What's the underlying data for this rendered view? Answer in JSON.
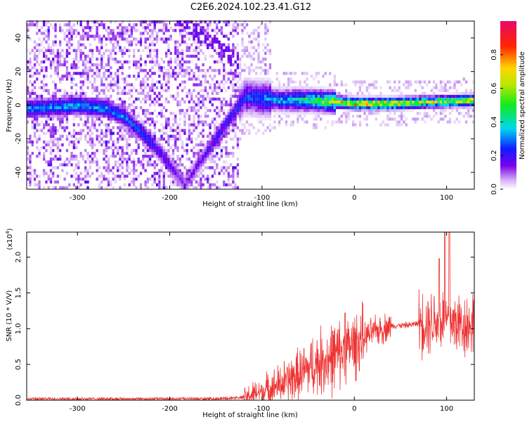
{
  "figure_title": "C2E6.2024.102.23.41.G12",
  "colors": {
    "snr_line": "#ee3333",
    "axis": "#000000"
  },
  "chart_data": [
    {
      "type": "heatmap",
      "xlabel": "Height of straight line (km)",
      "ylabel": "Frequency (Hz)",
      "xlim": [
        -355,
        130
      ],
      "ylim": [
        -50,
        50
      ],
      "x_ticks": [
        -300,
        -200,
        -100,
        0,
        100
      ],
      "x_tick_labels": [
        "-300",
        "-200",
        "-100",
        "0",
        "100"
      ],
      "y_ticks": [
        -40,
        -20,
        0,
        20,
        40
      ],
      "y_tick_labels": [
        "-40",
        "-20",
        "0",
        "20",
        "40"
      ],
      "ridge": [
        {
          "x": -350,
          "f": -3,
          "amp": 0.35
        },
        {
          "x": -300,
          "f": -1,
          "amp": 0.38
        },
        {
          "x": -270,
          "f": -3,
          "amp": 0.36
        },
        {
          "x": -250,
          "f": -8,
          "amp": 0.34
        },
        {
          "x": -230,
          "f": -18,
          "amp": 0.3
        },
        {
          "x": -210,
          "f": -30,
          "amp": 0.22
        },
        {
          "x": -185,
          "f": -48,
          "amp": 0.15
        },
        {
          "x": -120,
          "f": 4,
          "amp": 0.3
        },
        {
          "x": -80,
          "f": 2,
          "amp": 0.42
        },
        {
          "x": -50,
          "f": 2,
          "amp": 0.55
        },
        {
          "x": -20,
          "f": 1,
          "amp": 0.75
        },
        {
          "x": 0,
          "f": 0,
          "amp": 0.95
        },
        {
          "x": 40,
          "f": 0,
          "amp": 0.95
        },
        {
          "x": 80,
          "f": 1,
          "amp": 0.7
        },
        {
          "x": 130,
          "f": 2,
          "amp": 0.85
        }
      ],
      "colorbar": {
        "label": "Normalized spectral amplitude",
        "range": [
          0,
          1
        ],
        "ticks": [
          0.0,
          0.2,
          0.4,
          0.6,
          0.8
        ],
        "tick_labels": [
          "0.0",
          "0.2",
          "0.4",
          "0.6",
          "0.8"
        ]
      }
    },
    {
      "type": "line",
      "xlabel": "Height of straight line (km)",
      "ylabel": "SNR (10 * V/V)",
      "multiplier": "(x10",
      "multiplier_exp": "4",
      "multiplier_close": ")",
      "xlim": [
        -355,
        130
      ],
      "ylim": [
        0,
        2.35
      ],
      "x_ticks": [
        -300,
        -200,
        -100,
        0,
        100
      ],
      "x_tick_labels": [
        "-300",
        "-200",
        "-100",
        "0",
        "100"
      ],
      "y_ticks": [
        0.0,
        0.5,
        1.0,
        1.5,
        2.0
      ],
      "y_tick_labels": [
        "0.0",
        "0.5",
        "1.0",
        "1.5",
        "2.0"
      ],
      "envelope": {
        "x": [
          -355,
          -250,
          -150,
          -120,
          -100,
          -80,
          -60,
          -40,
          -20,
          0,
          20,
          40,
          60,
          70,
          80,
          100,
          120,
          130
        ],
        "y": [
          0.02,
          0.02,
          0.02,
          0.04,
          0.12,
          0.22,
          0.35,
          0.52,
          0.62,
          0.78,
          0.95,
          1.04,
          1.05,
          1.08,
          1.12,
          1.12,
          1.05,
          1.08
        ]
      },
      "peaks": [
        {
          "x": -10,
          "y": 1.22
        },
        {
          "x": 92,
          "y": 1.98
        },
        {
          "x": 98,
          "y": 2.35
        },
        {
          "x": 103,
          "y": 2.35
        }
      ]
    }
  ]
}
